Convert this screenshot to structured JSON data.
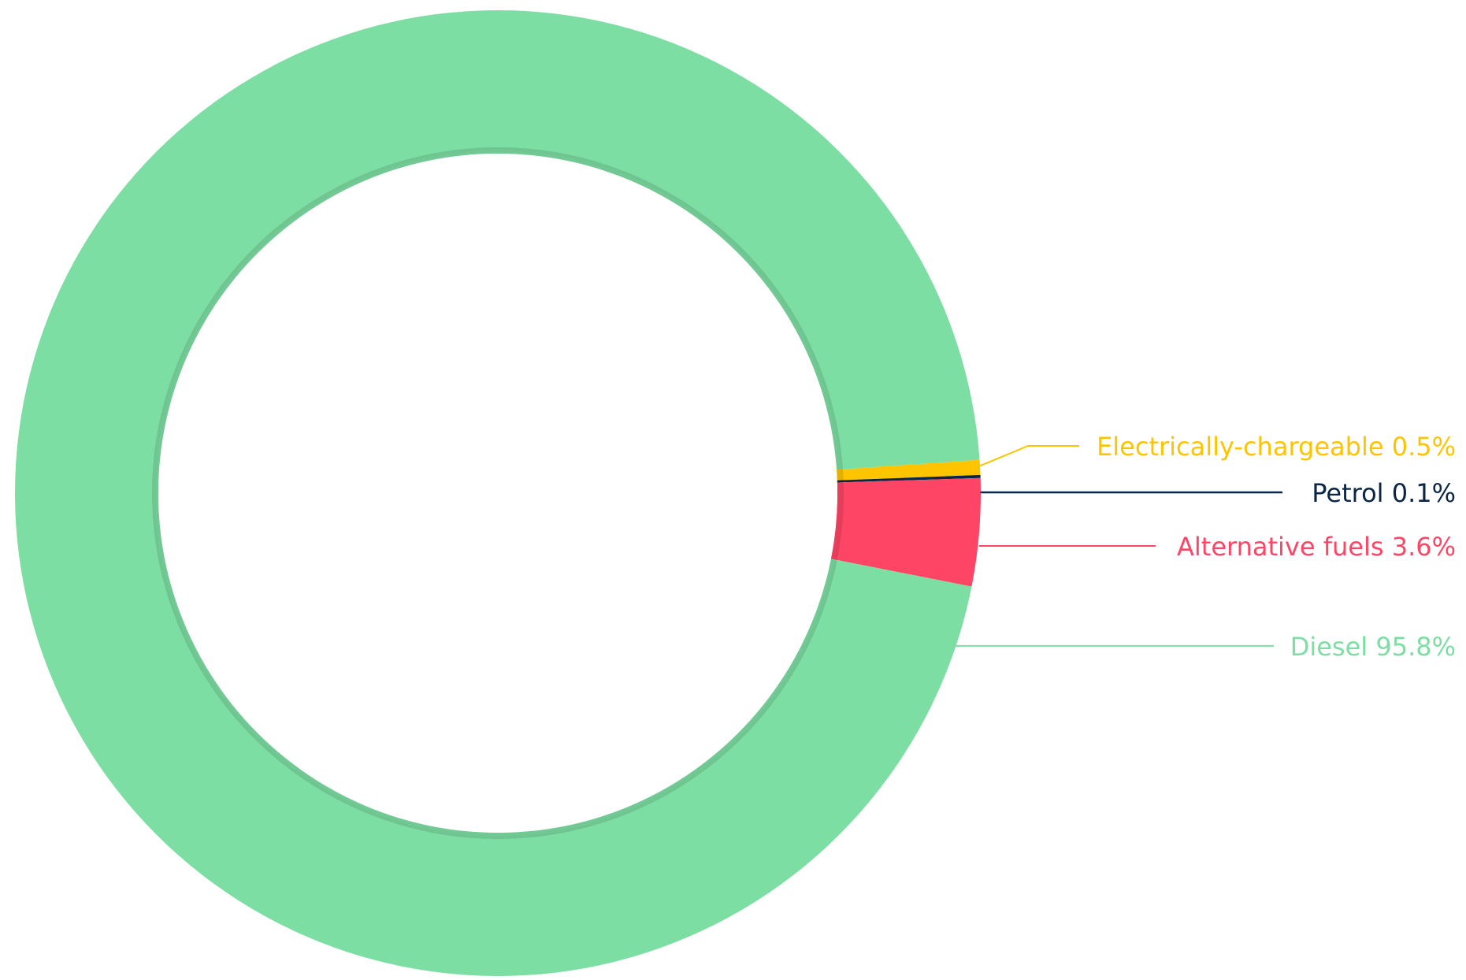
{
  "chart_data": {
    "type": "pie",
    "variant": "donut",
    "title": "",
    "labels": [
      "Electrically-chargeable 0.5%",
      "Petrol 0.1%",
      "Alternative fuels 3.6%",
      "Diesel 95.8%"
    ],
    "series": [
      {
        "values": [
          0.5,
          0.1,
          3.6,
          95.8
        ],
        "categories": [
          "Electrically-chargeable",
          "Petrol",
          "Alternative fuels",
          "Diesel"
        ],
        "colors": [
          "#FFC400",
          "#0B2545",
          "#FF4566",
          "#7DDEA3"
        ]
      }
    ],
    "legend": "leader-line labels on the right",
    "start_angle_deg": 0,
    "direction": "clockwise"
  }
}
